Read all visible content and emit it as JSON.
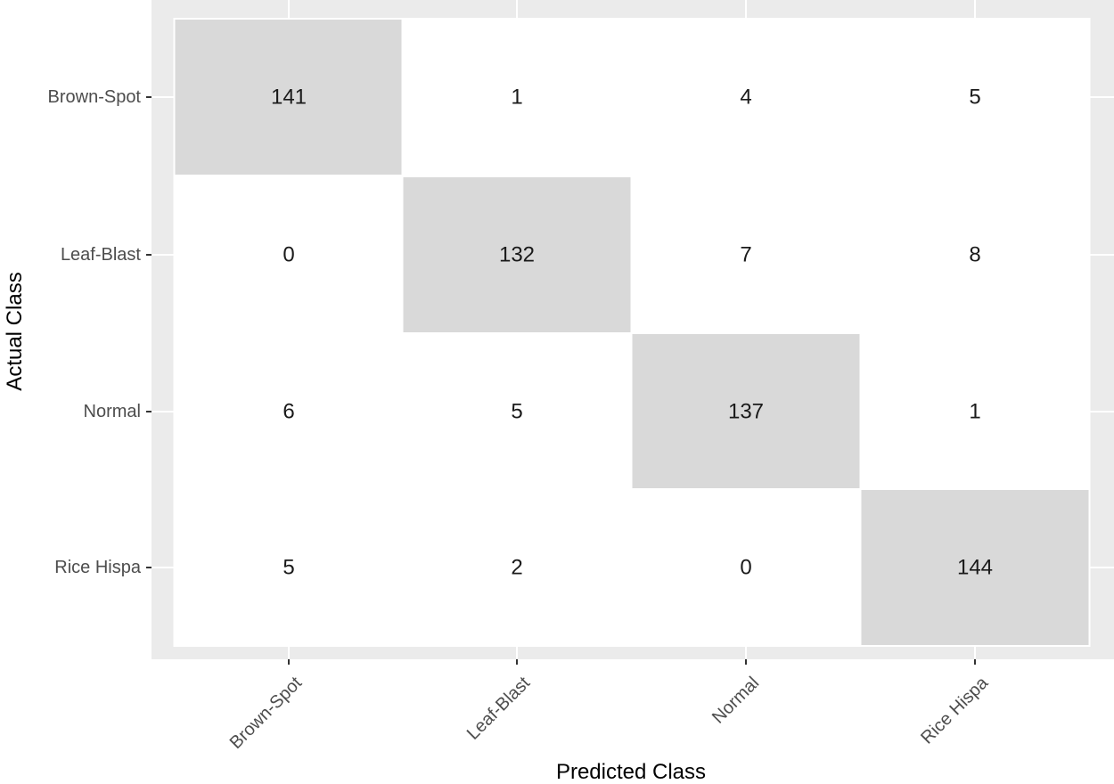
{
  "chart_data": {
    "type": "heatmap",
    "title": "",
    "xlabel": "Predicted Class",
    "ylabel": "Actual Class",
    "x_categories": [
      "Brown-Spot",
      "Leaf-Blast",
      "Normal",
      "Rice Hispa"
    ],
    "y_categories": [
      "Brown-Spot",
      "Leaf-Blast",
      "Normal",
      "Rice Hispa"
    ],
    "values": [
      [
        141,
        1,
        4,
        5
      ],
      [
        0,
        132,
        7,
        8
      ],
      [
        6,
        5,
        137,
        1
      ],
      [
        5,
        2,
        0,
        144
      ]
    ],
    "grid": true,
    "legend": "none",
    "colors": {
      "panel_background": "#ebebeb",
      "highlight_fill": "#d9d9d9",
      "cell_fill": "#ffffff",
      "text": "#1a1a1a"
    }
  }
}
